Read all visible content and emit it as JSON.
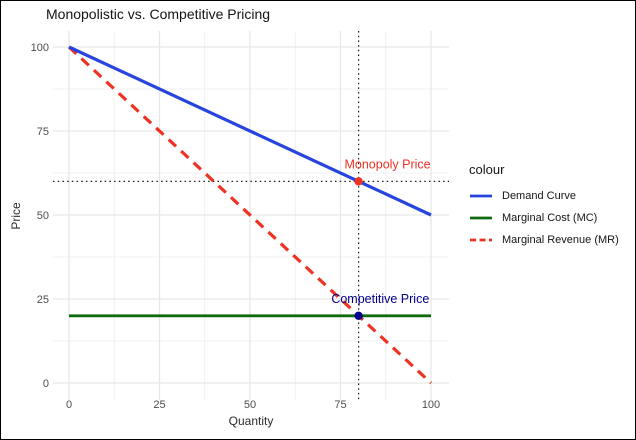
{
  "chart_data": {
    "type": "line",
    "title": "Monopolistic vs. Competitive Pricing",
    "xlabel": "Quantity",
    "ylabel": "Price",
    "xlim": [
      0,
      100
    ],
    "ylim": [
      0,
      100
    ],
    "x_ticks": [
      0,
      25,
      50,
      75,
      100
    ],
    "y_ticks": [
      0,
      25,
      50,
      75,
      100
    ],
    "x_minor_ticks": [
      12.5,
      37.5,
      62.5,
      87.5
    ],
    "y_minor_ticks": [
      12.5,
      37.5,
      62.5,
      87.5
    ],
    "grid": true,
    "legend_title": "colour",
    "legend_position": "right",
    "series": [
      {
        "name": "Demand Curve",
        "color": "#2745de",
        "dash": "solid",
        "width": 3.2,
        "points": [
          [
            0,
            100
          ],
          [
            100,
            50
          ]
        ]
      },
      {
        "name": "Marginal Cost (MC)",
        "color": "#106b10",
        "dash": "solid",
        "width": 2.8,
        "points": [
          [
            0,
            20
          ],
          [
            100,
            20
          ]
        ]
      },
      {
        "name": "Marginal Revenue (MR)",
        "color": "#ee3224",
        "dash": "dashed",
        "width": 3.2,
        "points": [
          [
            0,
            100
          ],
          [
            100,
            0
          ]
        ]
      }
    ],
    "reference_lines": [
      {
        "orientation": "vertical",
        "at": 80,
        "style": "dotted",
        "color": "#1a1a1a"
      },
      {
        "orientation": "horizontal",
        "at": 60,
        "style": "dotted",
        "color": "#1a1a1a"
      }
    ],
    "markers": [
      {
        "label": "Monopoly Price",
        "x": 80,
        "y": 60,
        "point_color": "#ee3224",
        "label_color": "#ee3224",
        "label_x": 88,
        "label_y": 65
      },
      {
        "label": "Competitive Price",
        "x": 80,
        "y": 20,
        "point_color": "#00008b",
        "label_color": "#00008b",
        "label_x": 86,
        "label_y": 25
      }
    ]
  },
  "style_colors": {
    "major_grid": "#e7e7e7",
    "minor_grid": "#f1f1f1",
    "tick_label": "#4d4d4d"
  }
}
